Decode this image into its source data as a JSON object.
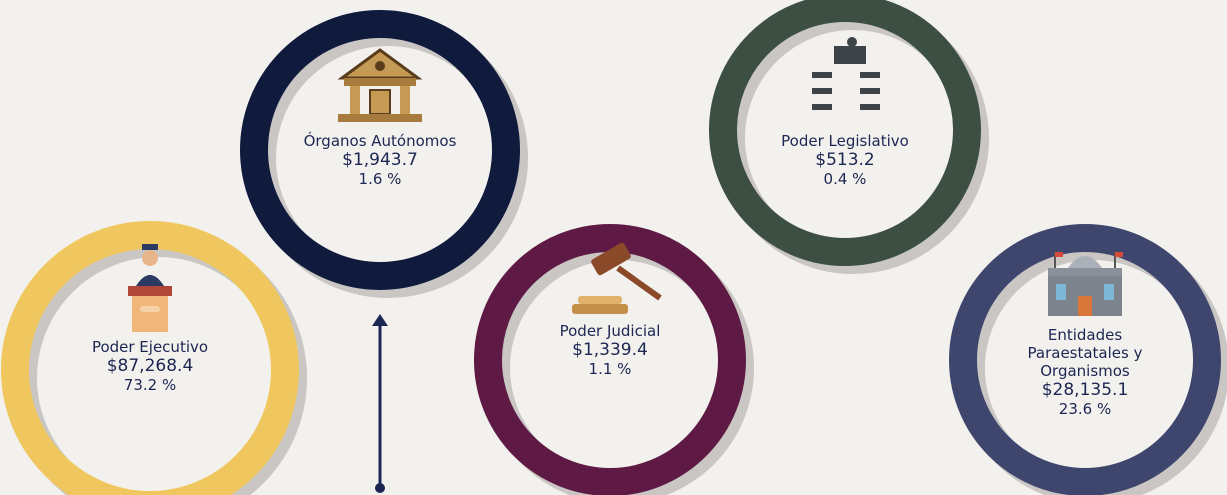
{
  "items": [
    {
      "name": "Poder Ejecutivo",
      "amount": "$87,268.4",
      "percent": "73.2 %"
    },
    {
      "name": "Órganos Autónomos",
      "amount": "$1,943.7",
      "percent": "1.6 %"
    },
    {
      "name": "Poder Judicial",
      "amount": "$1,339.4",
      "percent": "1.1 %"
    },
    {
      "name": "Poder Legislativo",
      "amount": "$513.2",
      "percent": "0.4 %"
    },
    {
      "name": "Entidades Paraestatales y Organismos",
      "amount": "$28,135.1",
      "percent": "23.6 %"
    }
  ]
}
